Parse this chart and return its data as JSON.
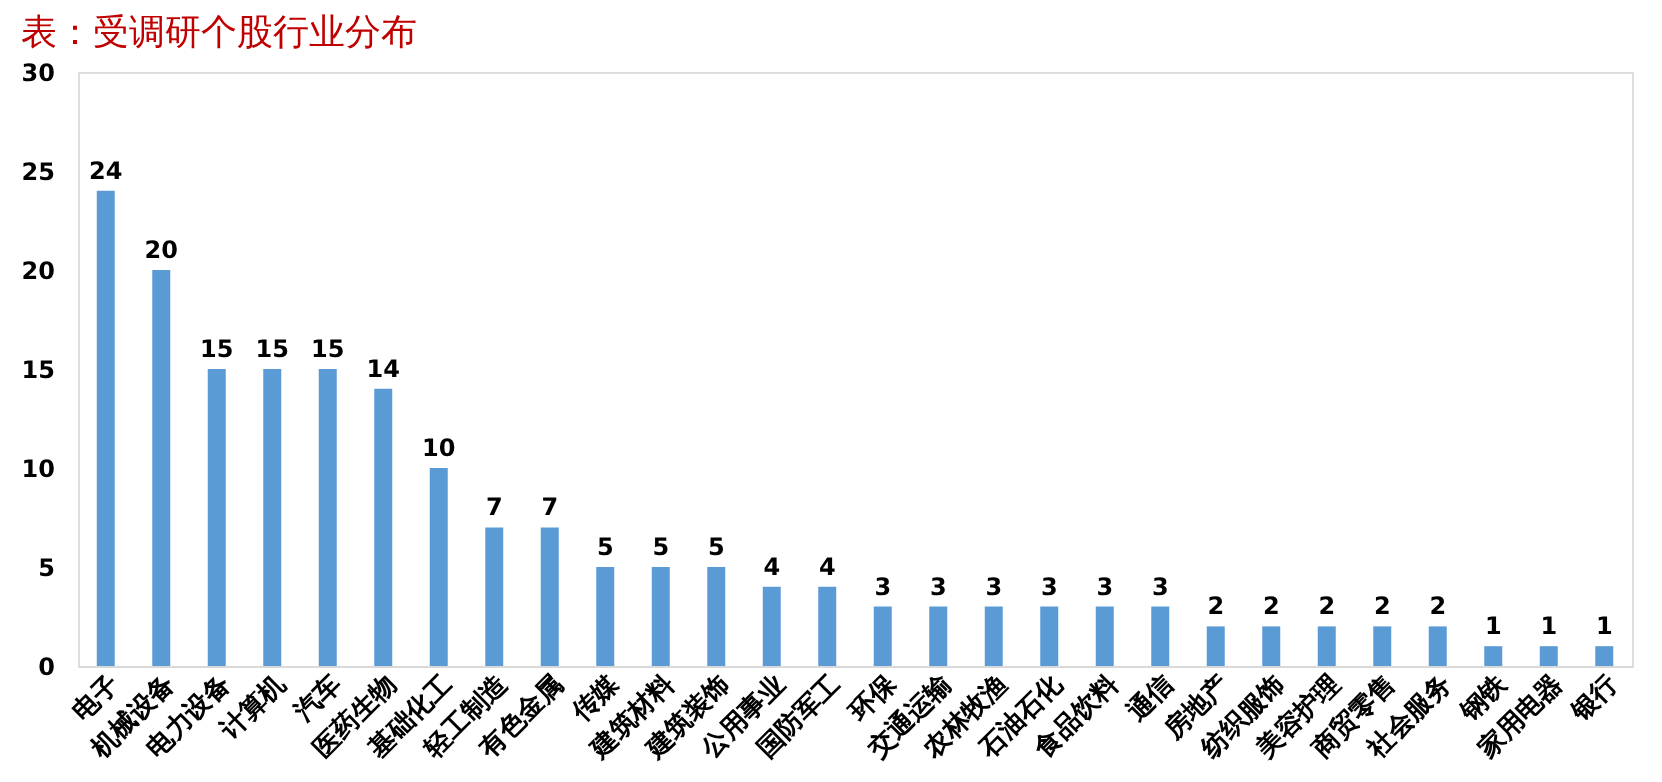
{
  "chart_data": {
    "type": "bar",
    "title": "表：受调研个股行业分布",
    "categories": [
      "电子",
      "机械设备",
      "电力设备",
      "计算机",
      "汽车",
      "医药生物",
      "基础化工",
      "轻工制造",
      "有色金属",
      "传媒",
      "建筑材料",
      "建筑装饰",
      "公用事业",
      "国防军工",
      "环保",
      "交通运输",
      "农林牧渔",
      "石油石化",
      "食品饮料",
      "通信",
      "房地产",
      "纺织服饰",
      "美容护理",
      "商贸零售",
      "社会服务",
      "钢铁",
      "家用电器",
      "银行"
    ],
    "values": [
      24,
      20,
      15,
      15,
      15,
      14,
      10,
      7,
      7,
      5,
      5,
      5,
      4,
      4,
      3,
      3,
      3,
      3,
      3,
      3,
      2,
      2,
      2,
      2,
      2,
      1,
      1,
      1
    ],
    "color": "#5b9bd5",
    "ylim": [
      0,
      30
    ],
    "yticks": [
      0,
      5,
      10,
      15,
      20,
      25,
      30
    ],
    "grid": false,
    "data_labels": true
  }
}
